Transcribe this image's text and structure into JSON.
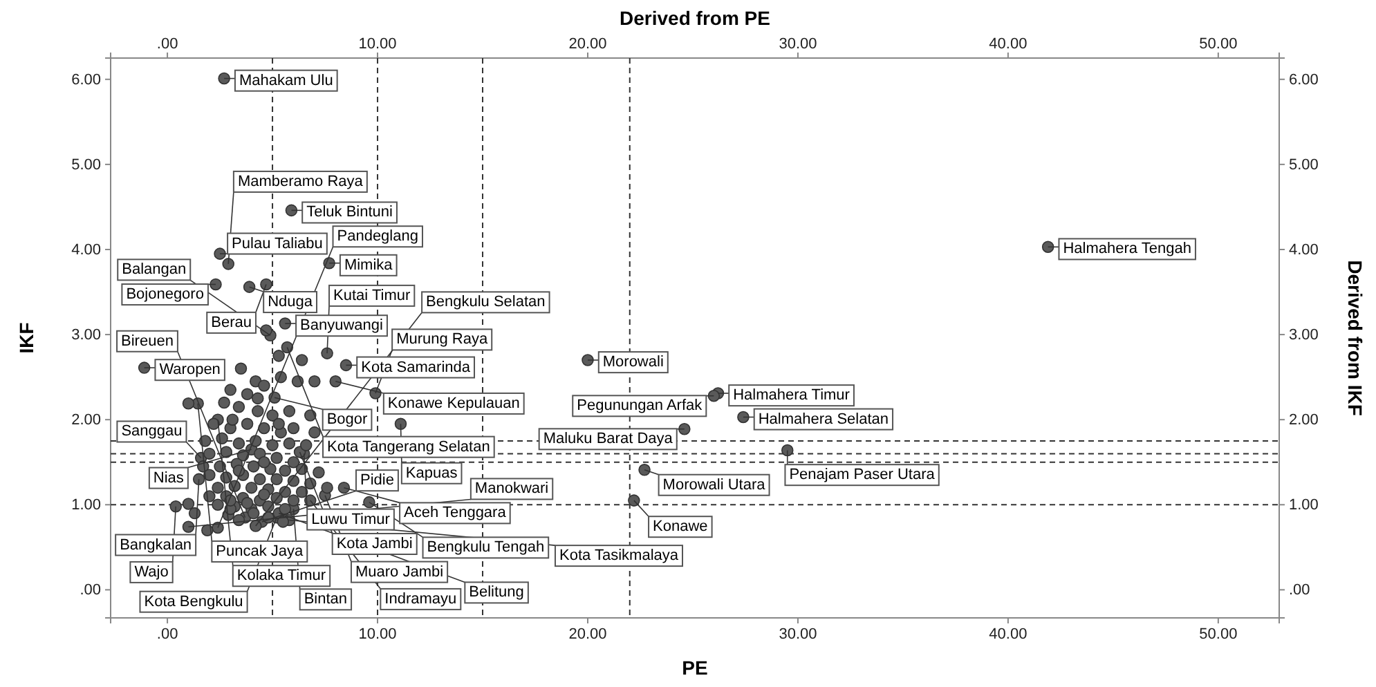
{
  "chart_data": {
    "type": "scatter",
    "xlabel": "PE",
    "ylabel": "IKF",
    "x2label": "Derived from PE",
    "y2label": "Derived from IKF",
    "color": "#5a5a5a",
    "marker": "circle",
    "xlim": [
      -2.7,
      52.9
    ],
    "ylim": [
      -0.33,
      6.25
    ],
    "x2lim": [
      -2.7,
      52.9
    ],
    "y2lim": [
      -0.33,
      6.25
    ],
    "xticks": [
      {
        "value": 0,
        "label": ".00"
      },
      {
        "value": 10,
        "label": "10.00"
      },
      {
        "value": 20,
        "label": "20.00"
      },
      {
        "value": 30,
        "label": "30.00"
      },
      {
        "value": 40,
        "label": "40.00"
      },
      {
        "value": 50,
        "label": "50.00"
      }
    ],
    "x2ticks": [
      {
        "value": 0,
        "label": ".00"
      },
      {
        "value": 10,
        "label": "10.00"
      },
      {
        "value": 20,
        "label": "20.00"
      },
      {
        "value": 30,
        "label": "30.00"
      },
      {
        "value": 40,
        "label": "40.00"
      },
      {
        "value": 50,
        "label": "50.00"
      }
    ],
    "yticks": [
      {
        "value": 0,
        "label": ".00"
      },
      {
        "value": 1,
        "label": "1.00"
      },
      {
        "value": 2,
        "label": "2.00"
      },
      {
        "value": 3,
        "label": "3.00"
      },
      {
        "value": 4,
        "label": "4.00"
      },
      {
        "value": 5,
        "label": "5.00"
      },
      {
        "value": 6,
        "label": "6.00"
      }
    ],
    "y2ticks": [
      {
        "value": 0,
        "label": ".00"
      },
      {
        "value": 1,
        "label": "1.00"
      },
      {
        "value": 2,
        "label": "2.00"
      },
      {
        "value": 3,
        "label": "3.00"
      },
      {
        "value": 4,
        "label": "4.00"
      },
      {
        "value": 5,
        "label": "5.00"
      },
      {
        "value": 6,
        "label": "6.00"
      }
    ],
    "x": [
      2.7,
      5.9,
      2.3,
      3.9,
      4.7,
      2.5,
      2.9,
      7.7,
      -1.1,
      5.6,
      8.5,
      7.6,
      4.9,
      5.7,
      20.0,
      8.0,
      26.2,
      26.0,
      27.4,
      24.6,
      29.5,
      22.7,
      6.5,
      22.2,
      41.9,
      11.1,
      9.9,
      5.1,
      1.45,
      2.4,
      4.0,
      6.3,
      1.6,
      1.5,
      8.4,
      0.4,
      7.5,
      9.6,
      6.0,
      5.2,
      6.8,
      1.0,
      2.4,
      3.7,
      4.5,
      5.3,
      4.2,
      5.8,
      1.0,
      1.9,
      1.0,
      1.3,
      3.5,
      4.2,
      3.0,
      3.8,
      4.6,
      5.4,
      6.2,
      2.7,
      3.4,
      4.3,
      5.0,
      5.8,
      6.8,
      2.2,
      3.0,
      3.8,
      4.6,
      5.4,
      6.0,
      7.0,
      1.8,
      2.6,
      3.4,
      4.2,
      5.0,
      5.8,
      6.6,
      2.0,
      2.8,
      3.6,
      4.4,
      5.2,
      6.0,
      1.7,
      2.5,
      3.3,
      4.1,
      4.9,
      5.6,
      6.4,
      7.2,
      2.0,
      2.8,
      3.6,
      4.4,
      5.2,
      6.0,
      6.8,
      2.4,
      3.2,
      4.0,
      4.8,
      5.6,
      6.4,
      7.6,
      2.0,
      2.8,
      3.6,
      4.4,
      5.2,
      6.0,
      2.4,
      3.2,
      4.0,
      4.8,
      5.6,
      2.9,
      3.4,
      4.1,
      4.8,
      5.5,
      3.0,
      3.8,
      4.6,
      3.4,
      4.6,
      3.0,
      5.3,
      4.3,
      3.1,
      7.0,
      6.4,
      5.3,
      4.7
    ],
    "values": [
      6.01,
      4.46,
      3.59,
      3.56,
      3.59,
      3.95,
      3.83,
      3.84,
      2.61,
      3.13,
      2.64,
      2.78,
      2.99,
      2.85,
      2.7,
      2.45,
      2.31,
      2.28,
      2.03,
      1.89,
      1.64,
      1.41,
      1.6,
      1.05,
      4.03,
      1.95,
      2.31,
      2.26,
      2.19,
      2.0,
      1.65,
      1.62,
      1.55,
      1.3,
      1.2,
      0.98,
      1.11,
      1.03,
      0.95,
      0.85,
      1.05,
      0.74,
      0.73,
      0.85,
      0.8,
      0.9,
      0.75,
      0.82,
      2.19,
      0.7,
      1.01,
      0.9,
      2.6,
      2.45,
      2.35,
      2.3,
      2.4,
      2.5,
      2.45,
      2.2,
      2.15,
      2.1,
      2.05,
      2.1,
      2.05,
      1.95,
      1.9,
      1.95,
      1.9,
      1.85,
      1.9,
      1.85,
      1.75,
      1.78,
      1.72,
      1.75,
      1.7,
      1.72,
      1.7,
      1.6,
      1.62,
      1.58,
      1.6,
      1.55,
      1.5,
      1.45,
      1.45,
      1.48,
      1.45,
      1.42,
      1.4,
      1.42,
      1.38,
      1.35,
      1.32,
      1.35,
      1.3,
      1.3,
      1.28,
      1.25,
      1.2,
      1.22,
      1.2,
      1.18,
      1.15,
      1.15,
      1.2,
      1.1,
      1.1,
      1.08,
      1.05,
      1.08,
      1.05,
      1.0,
      0.98,
      0.95,
      0.98,
      0.95,
      0.88,
      0.82,
      0.9,
      0.85,
      0.8,
      0.95,
      1.02,
      1.12,
      1.4,
      1.5,
      1.05,
      1.95,
      2.25,
      2.0,
      2.45,
      2.7,
      2.75,
      3.05
    ],
    "ref_lines": [
      {
        "axis": "x",
        "value": 5,
        "line_style": "dashed"
      },
      {
        "axis": "x",
        "value": 10,
        "line_style": "dashed"
      },
      {
        "axis": "x",
        "value": 15,
        "line_style": "dashed"
      },
      {
        "axis": "x",
        "value": 22,
        "line_style": "dashed"
      },
      {
        "axis": "y",
        "value": 1.75,
        "line_style": "dashed"
      },
      {
        "axis": "y",
        "value": 1.6,
        "line_style": "dashed"
      },
      {
        "axis": "y",
        "value": 1.5,
        "line_style": "dashed"
      },
      {
        "axis": "y",
        "value": 1.0,
        "line_style": "dashed"
      }
    ],
    "annotations": [
      {
        "text": "Mahakam Ulu",
        "x": 2.7,
        "y": 6.01
      },
      {
        "text": "Teluk Bintuni",
        "x": 5.9,
        "y": 4.46
      },
      {
        "text": "Bojonegoro",
        "x": 2.3,
        "y": 3.59
      },
      {
        "text": "Nduga",
        "x": 3.9,
        "y": 3.56
      },
      {
        "text": "Berau",
        "x": 4.7,
        "y": 3.59
      },
      {
        "text": "Pulau Taliabu",
        "x": 2.5,
        "y": 3.95
      },
      {
        "text": "Mamberamo Raya",
        "x": 2.9,
        "y": 3.83
      },
      {
        "text": "Mimika",
        "x": 7.7,
        "y": 3.84
      },
      {
        "text": "Waropen",
        "x": -1.1,
        "y": 2.61
      },
      {
        "text": "Banyuwangi",
        "x": 5.6,
        "y": 3.13
      },
      {
        "text": "Kota Samarinda",
        "x": 8.5,
        "y": 2.64
      },
      {
        "text": "Kutai Timur",
        "x": 7.6,
        "y": 2.78
      },
      {
        "text": "Balangan",
        "x": 4.9,
        "y": 2.99
      },
      {
        "text": "Kota Tangerang Selatan",
        "x": 5.7,
        "y": 2.85
      },
      {
        "text": "Morowali",
        "x": 20.0,
        "y": 2.7
      },
      {
        "text": "Konawe Kepulauan",
        "x": 8.0,
        "y": 2.45
      },
      {
        "text": "Halmahera Timur",
        "x": 26.2,
        "y": 2.31
      },
      {
        "text": "Pegunungan Arfak",
        "x": 26.0,
        "y": 2.28
      },
      {
        "text": "Halmahera Selatan",
        "x": 27.4,
        "y": 2.03
      },
      {
        "text": "Maluku Barat Daya",
        "x": 24.6,
        "y": 1.89
      },
      {
        "text": "Penajam Paser Utara",
        "x": 29.5,
        "y": 1.64
      },
      {
        "text": "Morowali Utara",
        "x": 22.7,
        "y": 1.41
      },
      {
        "text": "Luwu Timur",
        "x": 6.5,
        "y": 1.6
      },
      {
        "text": "Konawe",
        "x": 22.2,
        "y": 1.05
      },
      {
        "text": "Halmahera Tengah",
        "x": 41.9,
        "y": 4.03
      },
      {
        "text": "Kapuas",
        "x": 11.1,
        "y": 1.95
      },
      {
        "text": "Murung Raya",
        "x": 9.9,
        "y": 2.31
      },
      {
        "text": "Bogor",
        "x": 5.1,
        "y": 2.26
      },
      {
        "text": "Puncak Jaya",
        "x": 1.45,
        "y": 2.19
      },
      {
        "text": "Kolaka Timur",
        "x": 2.4,
        "y": 2.0
      },
      {
        "text": "Nias",
        "x": 4.0,
        "y": 1.65
      },
      {
        "text": "Kota Jambi",
        "x": 6.3,
        "y": 1.62
      },
      {
        "text": "Sanggau",
        "x": 1.6,
        "y": 1.55
      },
      {
        "text": "Bangkalan",
        "x": 1.5,
        "y": 1.3
      },
      {
        "text": "Aceh Tenggara",
        "x": 8.4,
        "y": 1.2
      },
      {
        "text": "Wajo",
        "x": 0.4,
        "y": 0.98
      },
      {
        "text": "Muaro Jambi",
        "x": 7.5,
        "y": 1.11
      },
      {
        "text": "Bengkulu Tengah",
        "x": 9.6,
        "y": 1.03
      },
      {
        "text": "Bintan",
        "x": 6.0,
        "y": 0.95
      },
      {
        "text": "Kota Bengkulu",
        "x": 5.2,
        "y": 0.85
      },
      {
        "text": "Indramayu",
        "x": 6.8,
        "y": 1.05
      },
      {
        "text": "Manokwari",
        "x": 1.0,
        "y": 0.74
      },
      {
        "text": "Pandeglang",
        "x": 2.4,
        "y": 0.73
      },
      {
        "text": "Bireuen",
        "x": 3.7,
        "y": 0.85
      },
      {
        "text": "Pidie",
        "x": 4.5,
        "y": 0.8
      },
      {
        "text": "Belitung",
        "x": 5.3,
        "y": 0.9
      },
      {
        "text": "Bengkulu Selatan",
        "x": 4.2,
        "y": 0.75
      },
      {
        "text": "Kota Tasikmalaya",
        "x": 5.8,
        "y": 0.82
      }
    ]
  }
}
